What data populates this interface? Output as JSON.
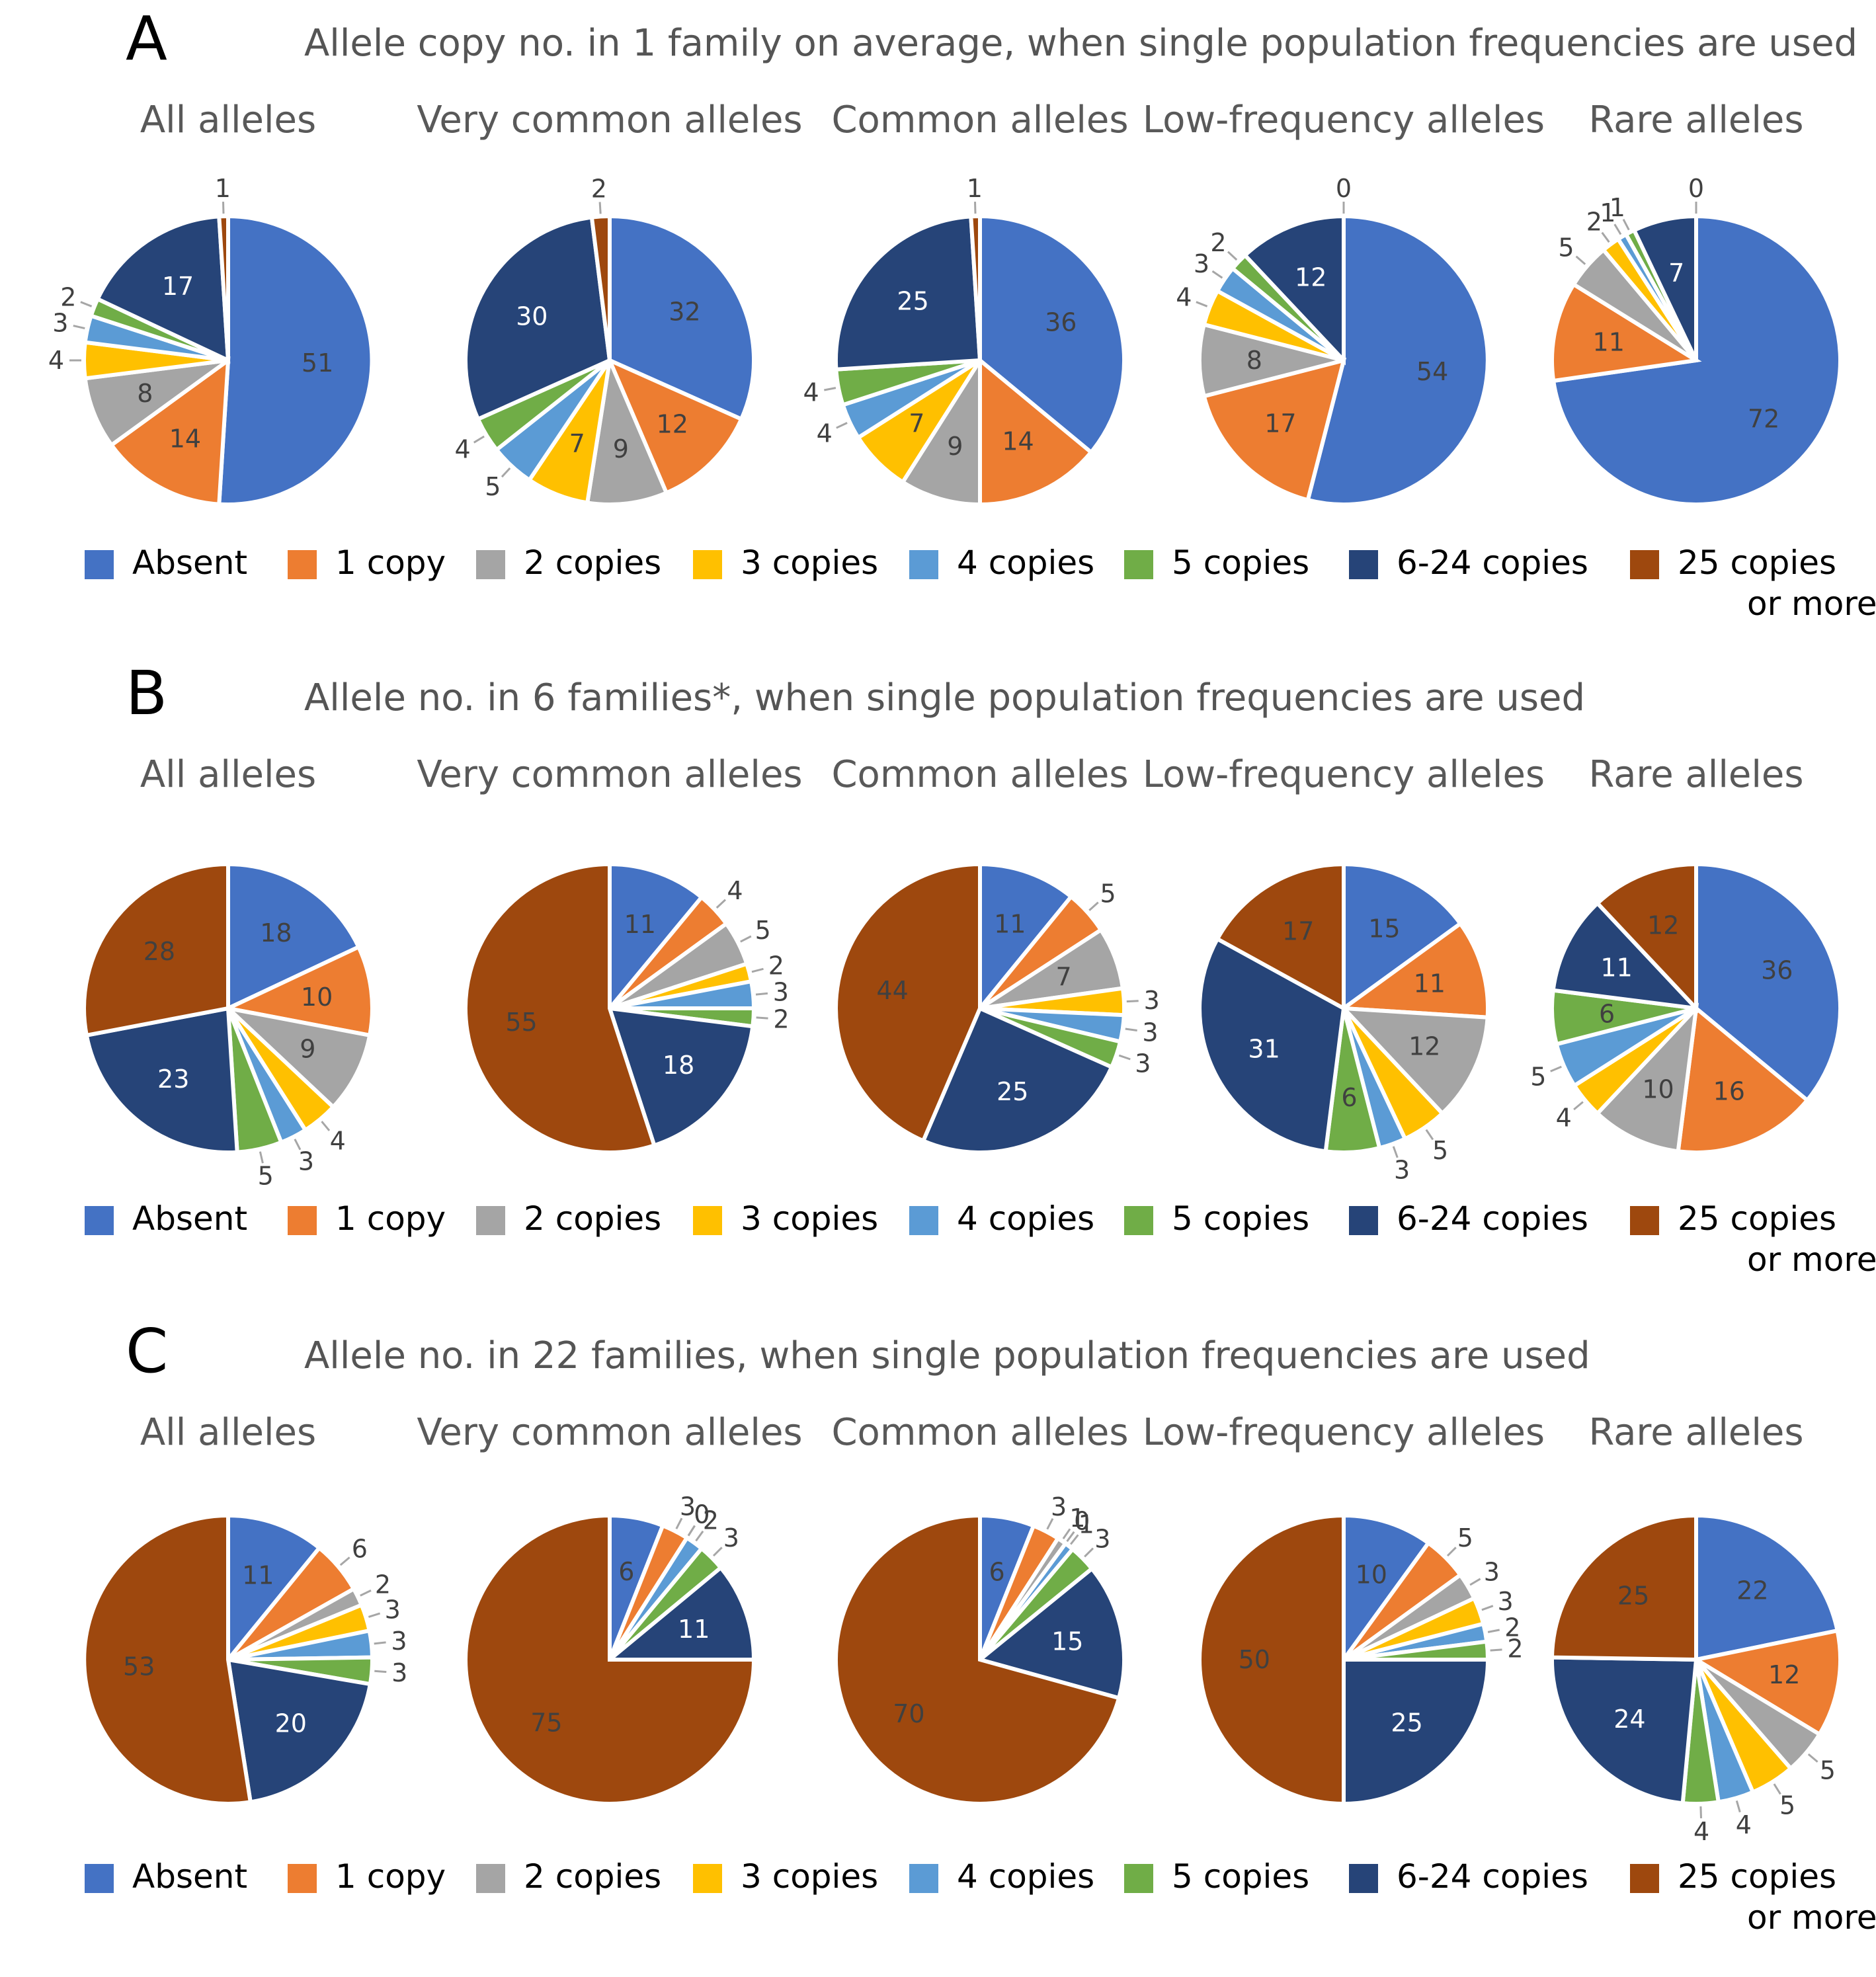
{
  "colors": {
    "Absent": "#4472C4",
    "1 copy": "#ED7D31",
    "2 copies": "#A5A5A5",
    "3 copies": "#FFC000",
    "4 copies": "#5B9BD5",
    "5 copies": "#70AD47",
    "6-24 copies": "#264478",
    "25 copies or more": "#9E480E"
  },
  "legend": {
    "items": [
      {
        "key": "Absent",
        "lines": [
          "Absent"
        ]
      },
      {
        "key": "1 copy",
        "lines": [
          "1 copy"
        ]
      },
      {
        "key": "2 copies",
        "lines": [
          "2 copies"
        ]
      },
      {
        "key": "3 copies",
        "lines": [
          "3 copies"
        ]
      },
      {
        "key": "4 copies",
        "lines": [
          "4 copies"
        ]
      },
      {
        "key": "5 copies",
        "lines": [
          "5 copies"
        ]
      },
      {
        "key": "6-24 copies",
        "lines": [
          "6-24 copies"
        ]
      },
      {
        "key": "25 copies or more",
        "lines": [
          "25 copies",
          "or more"
        ]
      }
    ]
  },
  "panels": [
    {
      "letter": "A",
      "title": "Allele copy no. in 1 family on average, when single population frequencies are used"
    },
    {
      "letter": "B",
      "title": "Allele no. in 6 families*, when single population frequencies are used"
    },
    {
      "letter": "C",
      "title": "Allele no. in 22 families, when single population frequencies are used"
    }
  ],
  "chart_data": [
    {
      "type": "pie",
      "panel": "A",
      "title": "All alleles",
      "categories": [
        "Absent",
        "1 copy",
        "2 copies",
        "3 copies",
        "4 copies",
        "5 copies",
        "6-24 copies",
        "25 copies or more"
      ],
      "values": [
        51,
        14,
        8,
        4,
        3,
        2,
        17,
        1
      ]
    },
    {
      "type": "pie",
      "panel": "A",
      "title": "Very common alleles",
      "categories": [
        "Absent",
        "1 copy",
        "2 copies",
        "3 copies",
        "4 copies",
        "5 copies",
        "6-24 copies",
        "25 copies or more"
      ],
      "values": [
        32,
        12,
        9,
        7,
        5,
        4,
        30,
        2
      ]
    },
    {
      "type": "pie",
      "panel": "A",
      "title": "Common alleles",
      "categories": [
        "Absent",
        "1 copy",
        "2 copies",
        "3 copies",
        "4 copies",
        "5 copies",
        "6-24 copies",
        "25 copies or more"
      ],
      "values": [
        36,
        14,
        9,
        7,
        4,
        4,
        25,
        1
      ]
    },
    {
      "type": "pie",
      "panel": "A",
      "title": "Low-frequency alleles",
      "categories": [
        "Absent",
        "1 copy",
        "2 copies",
        "3 copies",
        "4 copies",
        "5 copies",
        "6-24 copies",
        "25 copies or more"
      ],
      "values": [
        54,
        17,
        8,
        4,
        3,
        2,
        12,
        0
      ]
    },
    {
      "type": "pie",
      "panel": "A",
      "title": "Rare alleles",
      "categories": [
        "Absent",
        "1 copy",
        "2 copies",
        "3 copies",
        "4 copies",
        "5 copies",
        "6-24 copies",
        "25 copies or more"
      ],
      "values": [
        72,
        11,
        5,
        2,
        1,
        1,
        7,
        0
      ]
    },
    {
      "type": "pie",
      "panel": "B",
      "title": "All alleles",
      "categories": [
        "Absent",
        "1 copy",
        "2 copies",
        "3 copies",
        "4 copies",
        "5 copies",
        "6-24 copies",
        "25 copies or more"
      ],
      "values": [
        18,
        10,
        9,
        4,
        3,
        5,
        23,
        28
      ]
    },
    {
      "type": "pie",
      "panel": "B",
      "title": "Very common alleles",
      "categories": [
        "Absent",
        "1 copy",
        "2 copies",
        "3 copies",
        "4 copies",
        "5 copies",
        "6-24 copies",
        "25 copies or more"
      ],
      "values": [
        11,
        4,
        5,
        2,
        3,
        2,
        18,
        55
      ]
    },
    {
      "type": "pie",
      "panel": "B",
      "title": "Common alleles",
      "categories": [
        "Absent",
        "1 copy",
        "2 copies",
        "3 copies",
        "4 copies",
        "5 copies",
        "6-24 copies",
        "25 copies or more"
      ],
      "values": [
        11,
        5,
        7,
        3,
        3,
        3,
        25,
        44
      ]
    },
    {
      "type": "pie",
      "panel": "B",
      "title": "Low-frequency alleles",
      "categories": [
        "Absent",
        "1 copy",
        "2 copies",
        "3 copies",
        "4 copies",
        "5 copies",
        "6-24 copies",
        "25 copies or more"
      ],
      "values": [
        15,
        11,
        12,
        5,
        3,
        6,
        31,
        17
      ]
    },
    {
      "type": "pie",
      "panel": "B",
      "title": "Rare alleles",
      "categories": [
        "Absent",
        "1 copy",
        "2 copies",
        "3 copies",
        "4 copies",
        "5 copies",
        "6-24 copies",
        "25 copies or more"
      ],
      "values": [
        36,
        16,
        10,
        4,
        5,
        6,
        11,
        12
      ]
    },
    {
      "type": "pie",
      "panel": "C",
      "title": "All alleles",
      "categories": [
        "Absent",
        "1 copy",
        "2 copies",
        "3 copies",
        "4 copies",
        "5 copies",
        "6-24 copies",
        "25 copies or more"
      ],
      "values": [
        11,
        6,
        2,
        3,
        3,
        3,
        20,
        53
      ]
    },
    {
      "type": "pie",
      "panel": "C",
      "title": "Very common alleles",
      "categories": [
        "Absent",
        "1 copy",
        "2 copies",
        "3 copies",
        "4 copies",
        "5 copies",
        "6-24 copies",
        "25 copies or more"
      ],
      "values": [
        6,
        3,
        0,
        0,
        2,
        3,
        11,
        75
      ]
    },
    {
      "type": "pie",
      "panel": "C",
      "title": "Common alleles",
      "categories": [
        "Absent",
        "1 copy",
        "2 copies",
        "3 copies",
        "4 copies",
        "5 copies",
        "6-24 copies",
        "25 copies or more"
      ],
      "values": [
        6,
        3,
        1,
        0,
        1,
        3,
        15,
        70
      ]
    },
    {
      "type": "pie",
      "panel": "C",
      "title": "Low-frequency alleles",
      "categories": [
        "Absent",
        "1 copy",
        "2 copies",
        "3 copies",
        "4 copies",
        "5 copies",
        "6-24 copies",
        "25 copies or more"
      ],
      "values": [
        10,
        5,
        3,
        3,
        2,
        2,
        25,
        50
      ]
    },
    {
      "type": "pie",
      "panel": "C",
      "title": "Rare alleles",
      "categories": [
        "Absent",
        "1 copy",
        "2 copies",
        "3 copies",
        "4 copies",
        "5 copies",
        "6-24 copies",
        "25 copies or more"
      ],
      "values": [
        22,
        12,
        5,
        5,
        4,
        4,
        24,
        25
      ]
    }
  ]
}
